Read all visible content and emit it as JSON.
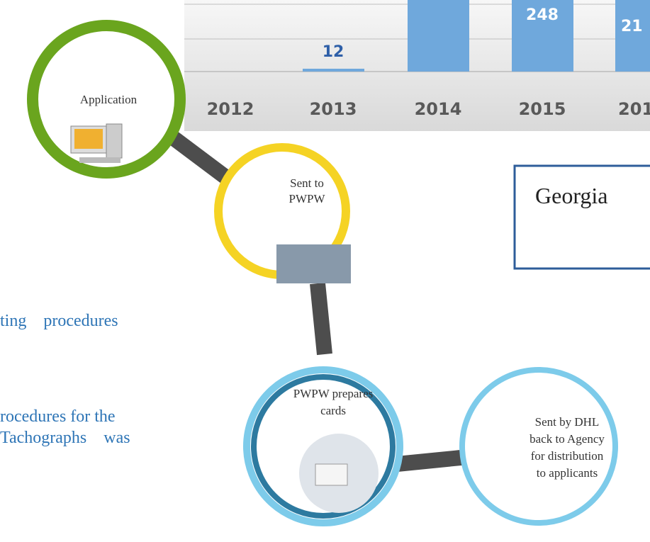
{
  "chart": {
    "categories": [
      "2012",
      "2013",
      "2014",
      "2015",
      "201"
    ],
    "value_labels": [
      "12",
      "248",
      "21"
    ]
  },
  "steps": [
    {
      "label": "Application"
    },
    {
      "label": [
        "Sent to",
        "PWPW"
      ]
    },
    {
      "label": [
        "PWPW prepares",
        "cards"
      ]
    },
    {
      "label": [
        "Sent by DHL",
        "back to Agency",
        "for distribution",
        "to applicants"
      ]
    }
  ],
  "box": {
    "title": "Georgia"
  },
  "body_text": [
    "ting    procedures",
    "rocedures for the",
    "Tachographs    was"
  ]
}
